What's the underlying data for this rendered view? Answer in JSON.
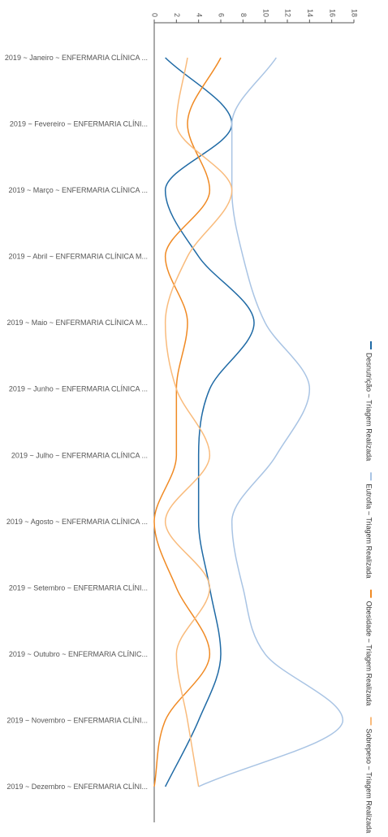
{
  "chart_data": {
    "type": "line",
    "orientation": "horizontal-values",
    "categories": [
      "2019 ~ Janeiro ~ ENFERMARIA CLÍNICA ...",
      "2019 ~ Fevereiro ~ ENFERMARIA CLÍNI...",
      "2019 ~ Março ~ ENFERMARIA CLÍNICA ...",
      "2019 ~ Abril ~ ENFERMARIA CLÍNICA M...",
      "2019 ~ Maio ~ ENFERMARIA CLÍNICA M...",
      "2019 ~ Junho ~ ENFERMARIA CLÍNICA ...",
      "2019 ~ Julho ~ ENFERMARIA CLÍNICA ...",
      "2019 ~ Agosto ~ ENFERMARIA CLÍNICA ...",
      "2019 ~ Setembro ~ ENFERMARIA CLÍNI...",
      "2019 ~ Outubro ~ ENFERMARIA CLÍNIC...",
      "2019 ~ Novembro ~ ENFERMARIA CLÍNI...",
      "2019 ~ Dezembro ~ ENFERMARIA CLÍNI..."
    ],
    "value_axis": {
      "min": 0,
      "max": 18,
      "ticks": [
        "0",
        "2",
        "4",
        "6",
        "8",
        "10",
        "12",
        "14",
        "16",
        "18"
      ],
      "position": "top"
    },
    "series": [
      {
        "name": "Desnutrição ~ Triagem Realizada",
        "color": "#1f6aa5",
        "values": [
          1,
          7,
          1,
          4,
          9,
          5,
          4,
          4,
          5,
          6,
          4,
          1
        ]
      },
      {
        "name": "Eutrofia ~ Triagem Realizada",
        "color": "#a9c4e4",
        "values": [
          11,
          7,
          7,
          8,
          10,
          14,
          11,
          7,
          8,
          10,
          17,
          4
        ]
      },
      {
        "name": "Obesidade ~ Triagem Realizada",
        "color": "#f08a24",
        "values": [
          6,
          3,
          5,
          1,
          3,
          2,
          2,
          0,
          2,
          5,
          1,
          0
        ]
      },
      {
        "name": "Sobrepeso ~ Triagem Realizada",
        "color": "#f9bb7c",
        "values": [
          3,
          2,
          7,
          3,
          1,
          2,
          5,
          1,
          5,
          2,
          3,
          4
        ]
      }
    ],
    "legend": {
      "position": "right",
      "orientation": "vertical-rotated"
    },
    "grid": false
  }
}
